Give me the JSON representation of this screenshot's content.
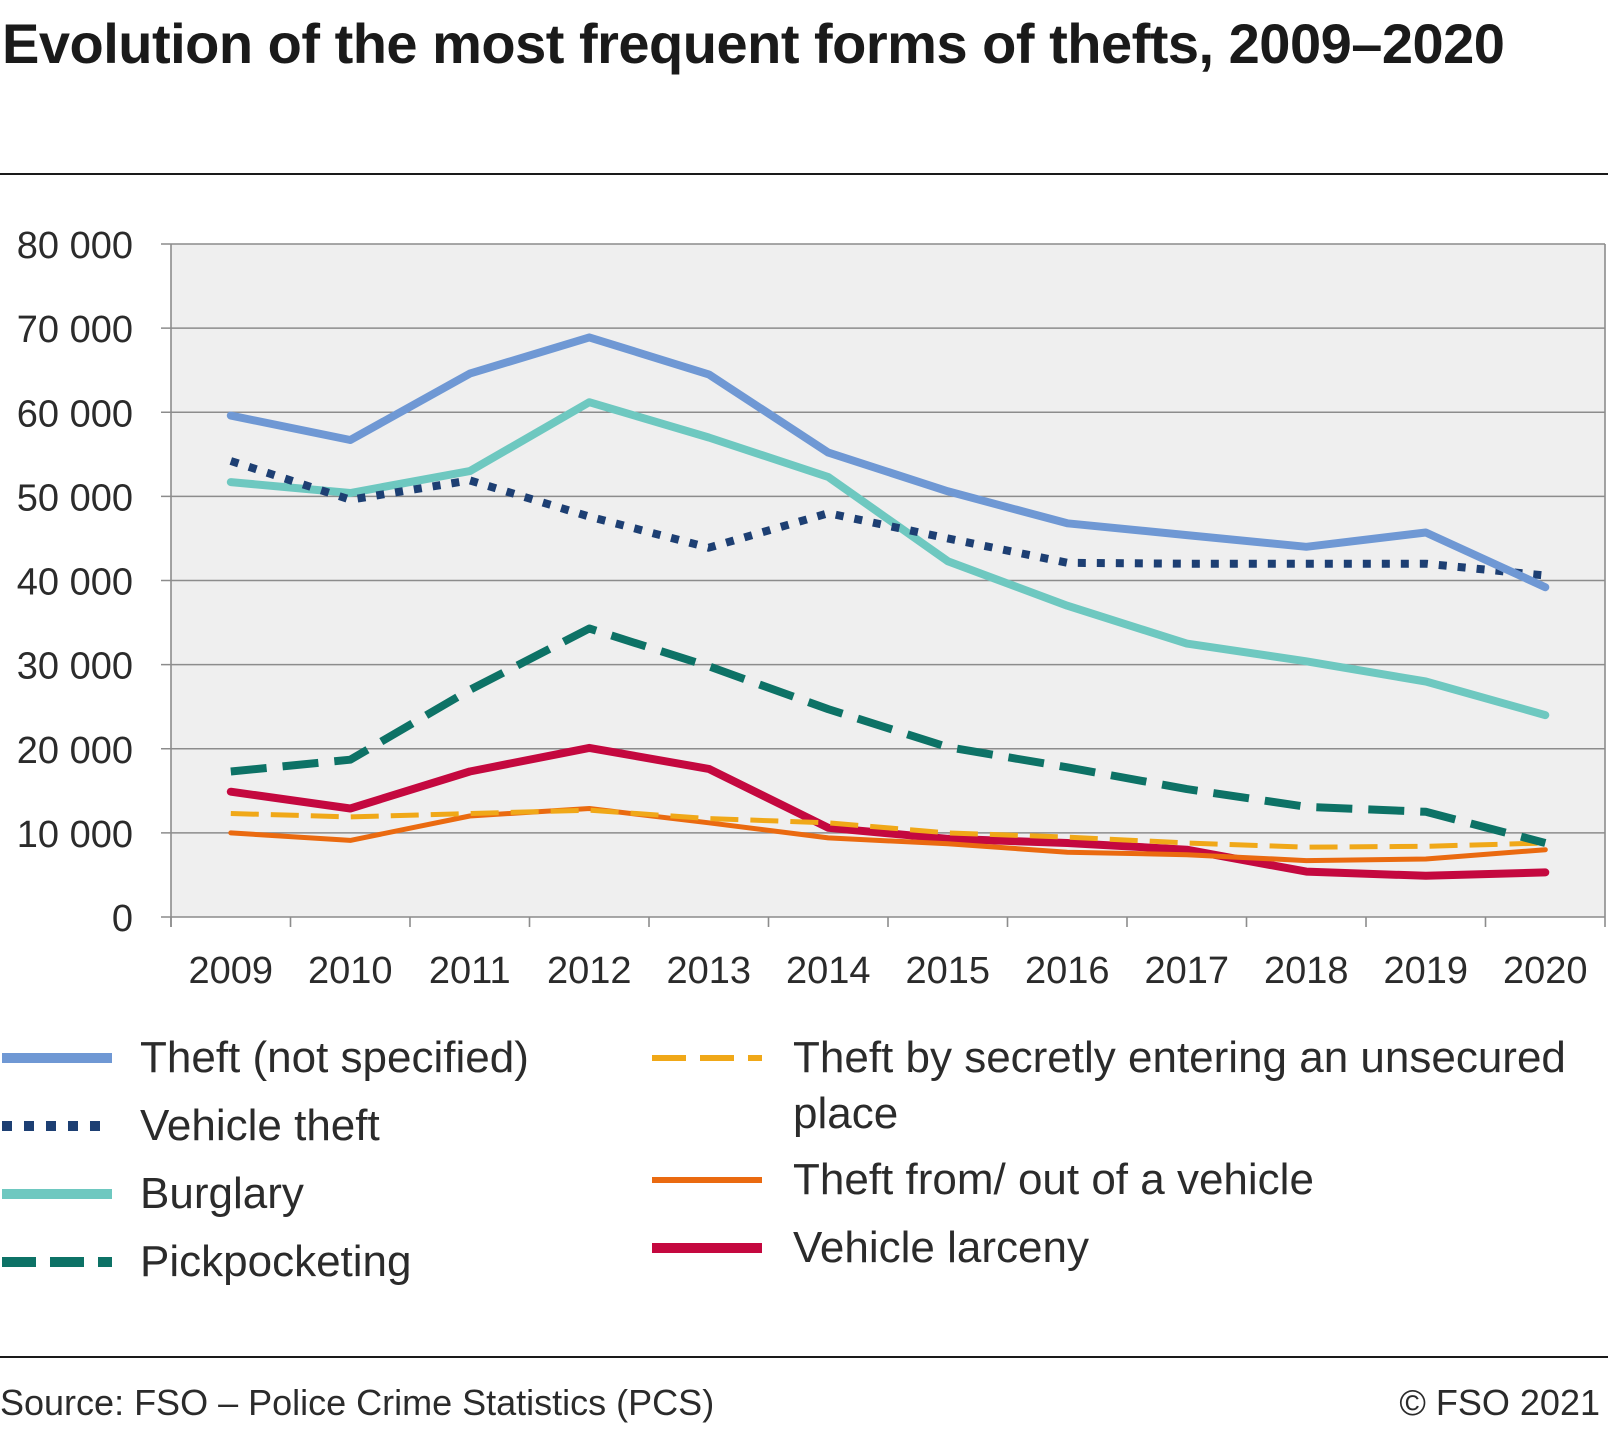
{
  "title": "Evolution of the most frequent forms of thefts, 2009–2020",
  "source": "Source: FSO – Police Crime Statistics (PCS)",
  "copyright": "© FSO 2021",
  "chart_data": {
    "type": "line",
    "title": "Evolution of the most frequent forms of thefts, 2009–2020",
    "xlabel": "",
    "ylabel": "",
    "ylim": [
      0,
      80000
    ],
    "yticks": [
      0,
      10000,
      20000,
      30000,
      40000,
      50000,
      60000,
      70000,
      80000
    ],
    "ytick_labels": [
      "0",
      "10 000",
      "20 000",
      "30 000",
      "40 000",
      "50 000",
      "60 000",
      "70 000",
      "80 000"
    ],
    "categories": [
      "2009",
      "2010",
      "2011",
      "2012",
      "2013",
      "2014",
      "2015",
      "2016",
      "2017",
      "2018",
      "2019",
      "2020"
    ],
    "grid": "horizontal",
    "legend_position": "bottom",
    "series": [
      {
        "name": "Theft (not specified)",
        "color": "#6f98d4",
        "style": "solid",
        "values": [
          59600,
          56700,
          64600,
          68900,
          64500,
          55200,
          50600,
          46800,
          45400,
          44000,
          45700,
          39200
        ]
      },
      {
        "name": "Vehicle theft",
        "color": "#1d3f73",
        "style": "dotted",
        "values": [
          54200,
          49600,
          51900,
          47600,
          43900,
          48000,
          45000,
          42100,
          42000,
          42000,
          42000,
          40600
        ]
      },
      {
        "name": "Burglary",
        "color": "#6ec8c0",
        "style": "solid",
        "values": [
          51700,
          50400,
          53000,
          61200,
          57000,
          52300,
          42300,
          37000,
          32500,
          30400,
          28000,
          24000
        ]
      },
      {
        "name": "Pickpocketing",
        "color": "#0d7266",
        "style": "dashed",
        "values": [
          17300,
          18700,
          27000,
          34300,
          29800,
          24700,
          20200,
          17800,
          15200,
          13100,
          12500,
          8800
        ]
      },
      {
        "name": "Theft by secretly entering an unsecured place",
        "color": "#f0a818",
        "style": "dashed-thin",
        "values": [
          12300,
          11900,
          12300,
          12700,
          11700,
          11200,
          10000,
          9500,
          8800,
          8300,
          8400,
          8800
        ]
      },
      {
        "name": "Theft from/ out of a vehicle",
        "color": "#ea6a10",
        "style": "solid-thin",
        "values": [
          10000,
          9100,
          12000,
          12900,
          11200,
          9400,
          8700,
          7700,
          7400,
          6700,
          6900,
          8000
        ]
      },
      {
        "name": "Vehicle larceny",
        "color": "#c4083f",
        "style": "solid",
        "values": [
          14900,
          12900,
          17300,
          20100,
          17600,
          10600,
          9300,
          8800,
          8000,
          5400,
          4900,
          5300
        ]
      }
    ]
  }
}
